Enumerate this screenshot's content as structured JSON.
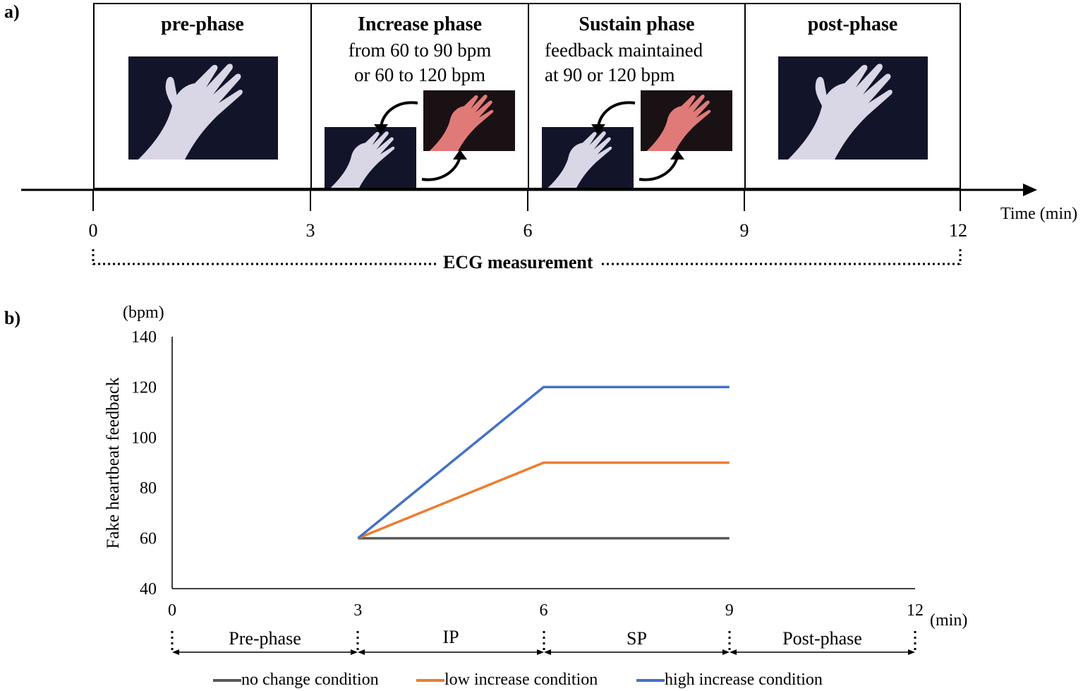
{
  "panel_a": {
    "label": "a)",
    "phases": [
      {
        "title": "pre-phase",
        "subtitle": ""
      },
      {
        "title": "Increase phase",
        "subtitle": "from 60 to 90 bpm\nor 60 to 120 bpm"
      },
      {
        "title": "Sustain phase",
        "subtitle": "feedback maintained\nat 90 or 120 bpm"
      },
      {
        "title": "post-phase",
        "subtitle": ""
      }
    ],
    "ticks": [
      "0",
      "3",
      "6",
      "9",
      "12"
    ],
    "time_label": "Time (min)",
    "ecg_label": "ECG measurement",
    "colors": {
      "hand_normal": "#d9d6e6",
      "hand_red": "#e07a78",
      "background": "#12152a"
    }
  },
  "panel_b": {
    "label": "b)",
    "phase_labels": [
      "Pre-phase",
      "IP",
      "SP",
      "Post-phase"
    ],
    "legend": [
      {
        "name": "no change condition",
        "color": "#595959"
      },
      {
        "name": "low increase condition",
        "color": "#ed7d31"
      },
      {
        "name": "high increase condition",
        "color": "#4472c4"
      }
    ]
  },
  "chart_data": {
    "type": "line",
    "title": "",
    "xlabel": "(min)",
    "ylabel": "Fake heartbeat feedback",
    "yunit": "(bpm)",
    "xlim": [
      0,
      12
    ],
    "ylim": [
      40,
      140
    ],
    "xticks": [
      0,
      3,
      6,
      9,
      12
    ],
    "yticks": [
      40,
      60,
      80,
      100,
      120,
      140
    ],
    "grid": false,
    "legend": "bottom",
    "series": [
      {
        "name": "no change condition",
        "color": "#595959",
        "points": [
          [
            3,
            60
          ],
          [
            6,
            60
          ],
          [
            9,
            60
          ]
        ]
      },
      {
        "name": "low increase condition",
        "color": "#ed7d31",
        "points": [
          [
            3,
            60
          ],
          [
            6,
            90
          ],
          [
            9,
            90
          ]
        ]
      },
      {
        "name": "high increase condition",
        "color": "#4472c4",
        "points": [
          [
            3,
            60
          ],
          [
            6,
            120
          ],
          [
            9,
            120
          ]
        ]
      }
    ]
  }
}
